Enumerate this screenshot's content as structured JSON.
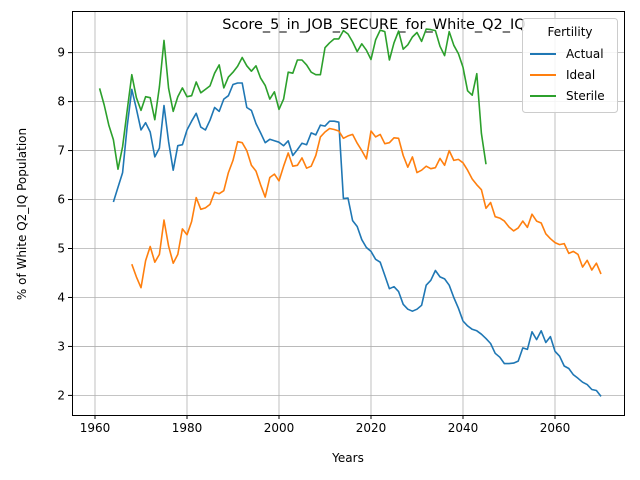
{
  "chart_data": {
    "type": "line",
    "title": "Score_5_in_JOB_SECURE_for_White_Q2_IQ",
    "xlabel": "Years",
    "ylabel": "% of White Q2_IQ Population",
    "xlim": [
      1955,
      2075
    ],
    "ylim": [
      1.6,
      9.85
    ],
    "xticks": [
      1960,
      1980,
      2000,
      2020,
      2040,
      2060
    ],
    "yticks": [
      2,
      3,
      4,
      5,
      6,
      7,
      8,
      9
    ],
    "grid": true,
    "legend": {
      "title": "Fertility",
      "placement": "top-right"
    },
    "series": [
      {
        "name": "Actual",
        "color": "#1f77b4",
        "points": [
          [
            1964,
            5.95
          ],
          [
            1965,
            6.25
          ],
          [
            1966,
            6.55
          ],
          [
            1967,
            7.5
          ],
          [
            1968,
            8.25
          ],
          [
            1969,
            7.85
          ],
          [
            1970,
            7.42
          ],
          [
            1971,
            7.57
          ],
          [
            1972,
            7.38
          ],
          [
            1973,
            6.87
          ],
          [
            1974,
            7.05
          ],
          [
            1975,
            7.92
          ],
          [
            1976,
            7.18
          ],
          [
            1977,
            6.6
          ],
          [
            1978,
            7.1
          ],
          [
            1979,
            7.12
          ],
          [
            1980,
            7.42
          ],
          [
            1981,
            7.6
          ],
          [
            1982,
            7.76
          ],
          [
            1983,
            7.48
          ],
          [
            1984,
            7.42
          ],
          [
            1985,
            7.62
          ],
          [
            1986,
            7.88
          ],
          [
            1987,
            7.8
          ],
          [
            1988,
            8.05
          ],
          [
            1989,
            8.12
          ],
          [
            1990,
            8.35
          ],
          [
            1991,
            8.38
          ],
          [
            1992,
            8.38
          ],
          [
            1993,
            7.88
          ],
          [
            1994,
            7.82
          ],
          [
            1995,
            7.55
          ],
          [
            1996,
            7.36
          ],
          [
            1997,
            7.16
          ],
          [
            1998,
            7.23
          ],
          [
            1999,
            7.2
          ],
          [
            2000,
            7.17
          ],
          [
            2001,
            7.1
          ],
          [
            2002,
            7.2
          ],
          [
            2003,
            6.9
          ],
          [
            2004,
            7.02
          ],
          [
            2005,
            7.15
          ],
          [
            2006,
            7.12
          ],
          [
            2007,
            7.36
          ],
          [
            2008,
            7.32
          ],
          [
            2009,
            7.52
          ],
          [
            2010,
            7.5
          ],
          [
            2011,
            7.6
          ],
          [
            2012,
            7.6
          ],
          [
            2013,
            7.58
          ],
          [
            2014,
            6.02
          ],
          [
            2015,
            6.03
          ],
          [
            2016,
            5.57
          ],
          [
            2017,
            5.45
          ],
          [
            2018,
            5.18
          ],
          [
            2019,
            5.02
          ],
          [
            2020,
            4.94
          ],
          [
            2021,
            4.78
          ],
          [
            2022,
            4.72
          ],
          [
            2023,
            4.45
          ],
          [
            2024,
            4.18
          ],
          [
            2025,
            4.22
          ],
          [
            2026,
            4.12
          ],
          [
            2027,
            3.86
          ],
          [
            2028,
            3.76
          ],
          [
            2029,
            3.72
          ],
          [
            2030,
            3.76
          ],
          [
            2031,
            3.84
          ],
          [
            2032,
            4.25
          ],
          [
            2033,
            4.35
          ],
          [
            2034,
            4.55
          ],
          [
            2035,
            4.42
          ],
          [
            2036,
            4.38
          ],
          [
            2037,
            4.25
          ],
          [
            2038,
            4.0
          ],
          [
            2039,
            3.78
          ],
          [
            2040,
            3.52
          ],
          [
            2041,
            3.42
          ],
          [
            2042,
            3.35
          ],
          [
            2043,
            3.32
          ],
          [
            2044,
            3.25
          ],
          [
            2045,
            3.16
          ],
          [
            2046,
            3.06
          ],
          [
            2047,
            2.86
          ],
          [
            2048,
            2.78
          ],
          [
            2049,
            2.65
          ],
          [
            2050,
            2.65
          ],
          [
            2051,
            2.66
          ],
          [
            2052,
            2.7
          ],
          [
            2053,
            2.97
          ],
          [
            2054,
            2.94
          ],
          [
            2055,
            3.3
          ],
          [
            2056,
            3.14
          ],
          [
            2057,
            3.32
          ],
          [
            2058,
            3.08
          ],
          [
            2059,
            3.2
          ],
          [
            2060,
            2.9
          ],
          [
            2061,
            2.8
          ],
          [
            2062,
            2.6
          ],
          [
            2063,
            2.55
          ],
          [
            2064,
            2.42
          ],
          [
            2065,
            2.35
          ],
          [
            2066,
            2.27
          ],
          [
            2067,
            2.22
          ],
          [
            2068,
            2.12
          ],
          [
            2069,
            2.1
          ],
          [
            2070,
            1.98
          ]
        ]
      },
      {
        "name": "Ideal",
        "color": "#ff7f0e",
        "points": [
          [
            1968,
            4.68
          ],
          [
            1969,
            4.42
          ],
          [
            1970,
            4.2
          ],
          [
            1971,
            4.75
          ],
          [
            1972,
            5.04
          ],
          [
            1973,
            4.72
          ],
          [
            1974,
            4.88
          ],
          [
            1975,
            5.58
          ],
          [
            1976,
            5.05
          ],
          [
            1977,
            4.7
          ],
          [
            1978,
            4.88
          ],
          [
            1979,
            5.4
          ],
          [
            1980,
            5.28
          ],
          [
            1981,
            5.55
          ],
          [
            1982,
            6.04
          ],
          [
            1983,
            5.8
          ],
          [
            1984,
            5.83
          ],
          [
            1985,
            5.9
          ],
          [
            1986,
            6.15
          ],
          [
            1987,
            6.12
          ],
          [
            1988,
            6.18
          ],
          [
            1989,
            6.55
          ],
          [
            1990,
            6.8
          ],
          [
            1991,
            7.18
          ],
          [
            1992,
            7.16
          ],
          [
            1993,
            7.0
          ],
          [
            1994,
            6.7
          ],
          [
            1995,
            6.58
          ],
          [
            1996,
            6.3
          ],
          [
            1997,
            6.05
          ],
          [
            1998,
            6.45
          ],
          [
            1999,
            6.52
          ],
          [
            2000,
            6.38
          ],
          [
            2001,
            6.68
          ],
          [
            2002,
            6.95
          ],
          [
            2003,
            6.68
          ],
          [
            2004,
            6.7
          ],
          [
            2005,
            6.85
          ],
          [
            2006,
            6.64
          ],
          [
            2007,
            6.68
          ],
          [
            2008,
            6.9
          ],
          [
            2009,
            7.28
          ],
          [
            2010,
            7.38
          ],
          [
            2011,
            7.45
          ],
          [
            2012,
            7.43
          ],
          [
            2013,
            7.4
          ],
          [
            2014,
            7.25
          ],
          [
            2015,
            7.3
          ],
          [
            2016,
            7.33
          ],
          [
            2017,
            7.15
          ],
          [
            2018,
            7.0
          ],
          [
            2019,
            6.83
          ],
          [
            2020,
            7.4
          ],
          [
            2021,
            7.28
          ],
          [
            2022,
            7.33
          ],
          [
            2023,
            7.14
          ],
          [
            2024,
            7.16
          ],
          [
            2025,
            7.26
          ],
          [
            2026,
            7.25
          ],
          [
            2027,
            6.9
          ],
          [
            2028,
            6.66
          ],
          [
            2029,
            6.87
          ],
          [
            2030,
            6.55
          ],
          [
            2031,
            6.6
          ],
          [
            2032,
            6.68
          ],
          [
            2033,
            6.63
          ],
          [
            2034,
            6.65
          ],
          [
            2035,
            6.84
          ],
          [
            2036,
            6.7
          ],
          [
            2037,
            7.0
          ],
          [
            2038,
            6.8
          ],
          [
            2039,
            6.82
          ],
          [
            2040,
            6.75
          ],
          [
            2041,
            6.6
          ],
          [
            2042,
            6.42
          ],
          [
            2043,
            6.3
          ],
          [
            2044,
            6.2
          ],
          [
            2045,
            5.82
          ],
          [
            2046,
            5.94
          ],
          [
            2047,
            5.65
          ],
          [
            2048,
            5.62
          ],
          [
            2049,
            5.56
          ],
          [
            2050,
            5.44
          ],
          [
            2051,
            5.36
          ],
          [
            2052,
            5.42
          ],
          [
            2053,
            5.56
          ],
          [
            2054,
            5.43
          ],
          [
            2055,
            5.7
          ],
          [
            2056,
            5.56
          ],
          [
            2057,
            5.52
          ],
          [
            2058,
            5.3
          ],
          [
            2059,
            5.2
          ],
          [
            2060,
            5.12
          ],
          [
            2061,
            5.08
          ],
          [
            2062,
            5.1
          ],
          [
            2063,
            4.9
          ],
          [
            2064,
            4.94
          ],
          [
            2065,
            4.88
          ],
          [
            2066,
            4.62
          ],
          [
            2067,
            4.76
          ],
          [
            2068,
            4.56
          ],
          [
            2069,
            4.7
          ],
          [
            2070,
            4.48
          ]
        ]
      },
      {
        "name": "Sterile",
        "color": "#2ca02c",
        "points": [
          [
            1961,
            8.27
          ],
          [
            1962,
            7.93
          ],
          [
            1963,
            7.52
          ],
          [
            1964,
            7.22
          ],
          [
            1965,
            6.62
          ],
          [
            1966,
            7.08
          ],
          [
            1967,
            7.82
          ],
          [
            1968,
            8.55
          ],
          [
            1969,
            8.08
          ],
          [
            1970,
            7.82
          ],
          [
            1971,
            8.1
          ],
          [
            1972,
            8.08
          ],
          [
            1973,
            7.63
          ],
          [
            1974,
            8.3
          ],
          [
            1975,
            9.25
          ],
          [
            1976,
            8.27
          ],
          [
            1977,
            7.8
          ],
          [
            1978,
            8.1
          ],
          [
            1979,
            8.28
          ],
          [
            1980,
            8.1
          ],
          [
            1981,
            8.12
          ],
          [
            1982,
            8.4
          ],
          [
            1983,
            8.18
          ],
          [
            1984,
            8.25
          ],
          [
            1985,
            8.32
          ],
          [
            1986,
            8.58
          ],
          [
            1987,
            8.75
          ],
          [
            1988,
            8.28
          ],
          [
            1989,
            8.5
          ],
          [
            1990,
            8.6
          ],
          [
            1991,
            8.72
          ],
          [
            1992,
            8.9
          ],
          [
            1993,
            8.73
          ],
          [
            1994,
            8.62
          ],
          [
            1995,
            8.73
          ],
          [
            1996,
            8.48
          ],
          [
            1997,
            8.33
          ],
          [
            1998,
            8.05
          ],
          [
            1999,
            8.2
          ],
          [
            2000,
            7.84
          ],
          [
            2001,
            8.05
          ],
          [
            2002,
            8.6
          ],
          [
            2003,
            8.58
          ],
          [
            2004,
            8.85
          ],
          [
            2005,
            8.85
          ],
          [
            2006,
            8.75
          ],
          [
            2007,
            8.6
          ],
          [
            2008,
            8.55
          ],
          [
            2009,
            8.55
          ],
          [
            2010,
            9.1
          ],
          [
            2011,
            9.2
          ],
          [
            2012,
            9.28
          ],
          [
            2013,
            9.28
          ],
          [
            2014,
            9.45
          ],
          [
            2015,
            9.38
          ],
          [
            2016,
            9.22
          ],
          [
            2017,
            9.02
          ],
          [
            2018,
            9.18
          ],
          [
            2019,
            9.05
          ],
          [
            2020,
            8.86
          ],
          [
            2021,
            9.26
          ],
          [
            2022,
            9.46
          ],
          [
            2023,
            9.43
          ],
          [
            2024,
            8.85
          ],
          [
            2025,
            9.2
          ],
          [
            2026,
            9.44
          ],
          [
            2027,
            9.07
          ],
          [
            2028,
            9.16
          ],
          [
            2029,
            9.32
          ],
          [
            2030,
            9.41
          ],
          [
            2031,
            9.23
          ],
          [
            2032,
            9.48
          ],
          [
            2033,
            9.47
          ],
          [
            2034,
            9.45
          ],
          [
            2035,
            9.13
          ],
          [
            2036,
            8.94
          ],
          [
            2037,
            9.43
          ],
          [
            2038,
            9.15
          ],
          [
            2039,
            8.98
          ],
          [
            2040,
            8.7
          ],
          [
            2041,
            8.22
          ],
          [
            2042,
            8.13
          ],
          [
            2043,
            8.57
          ],
          [
            2044,
            7.35
          ],
          [
            2045,
            6.72
          ]
        ]
      }
    ]
  }
}
